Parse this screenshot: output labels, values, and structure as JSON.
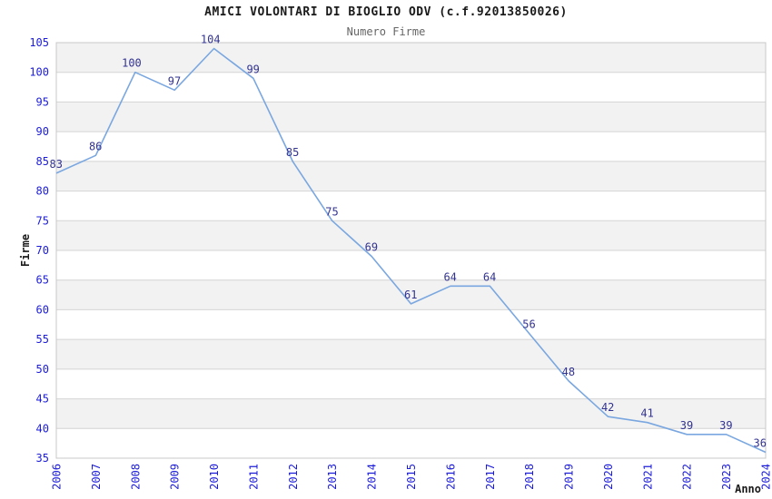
{
  "title": "AMICI VOLONTARI DI BIOGLIO ODV (c.f.92013850026)",
  "subtitle": "Numero Firme",
  "chart_data": {
    "type": "line",
    "x": [
      "2006",
      "2007",
      "2008",
      "2009",
      "2010",
      "2011",
      "2012",
      "2013",
      "2014",
      "2015",
      "2016",
      "2017",
      "2018",
      "2019",
      "2020",
      "2021",
      "2022",
      "2023",
      "2024"
    ],
    "values": [
      83,
      86,
      100,
      97,
      104,
      99,
      85,
      75,
      69,
      61,
      64,
      64,
      56,
      48,
      42,
      41,
      39,
      39,
      36
    ],
    "title": "AMICI VOLONTARI DI BIOGLIO ODV (c.f.92013850026)",
    "subtitle": "Numero Firme",
    "xlabel": "Anno",
    "ylabel": "Firme",
    "ylim": [
      35,
      105
    ],
    "ytick_step": 5,
    "grid": true,
    "banded_background": true,
    "legend": "none",
    "data_labels": true
  },
  "colors": {
    "line": "#7aa7e0",
    "tick_label": "#1c1cd8",
    "data_label": "#333391",
    "stripe": "#f2f2f2",
    "gridline": "#d4d4d4",
    "border": "#c8c8c8",
    "title": "#1a1a1a",
    "subtitle": "#666666",
    "axis_label": "#1a1a1a",
    "background": "#ffffff"
  }
}
